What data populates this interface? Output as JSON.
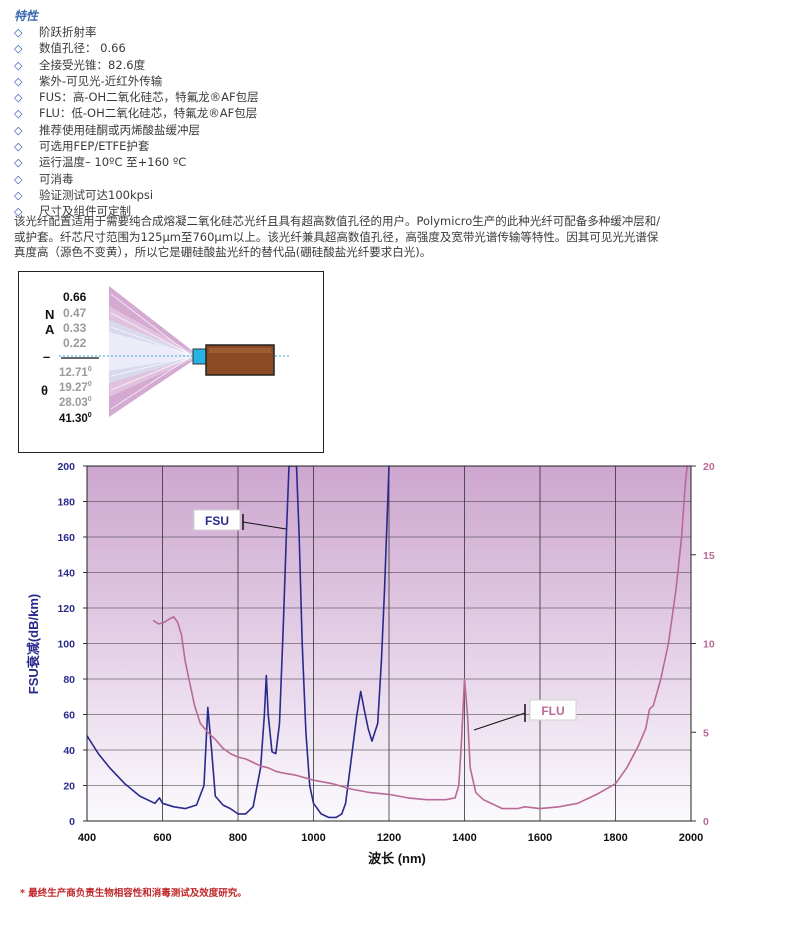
{
  "section_title": "特性",
  "features": [
    "阶跃折射率",
    "数值孔径：  0.66",
    "全接受光锥：82.6度",
    "紫外-可见光-近红外传输",
    "FUS：高-OH二氧化硅芯，特氟龙®AF包层",
    "FLU：低-OH二氧化硅芯，特氟龙®AF包层",
    "推荐使用硅酮或丙烯酸盐缓冲层",
    "可选用FEP/ETFE护套",
    "运行温度– 10ºC 至+160 ºC",
    "可消毒",
    "验证测试可达100kpsi",
    "尺寸及组件可定制"
  ],
  "description_lines": [
    "该光纤配置适用于需要纯合成熔凝二氧化硅芯光纤且具有超高数值孔径的用户。Polymicro生产的此种光纤可配备多种缓冲层和/",
    "或护套。纤芯尺寸范围为125μm至760μm以上。该光纤兼具超高数值孔径，高强度及宽带光谱传输等特性。因其可见光光谱保",
    "真度高（源色不变黄），所以它是硼硅酸盐光纤的替代品(硼硅酸盐光纤要求白光)。"
  ],
  "na_diagram": {
    "na_letters": [
      "N",
      "A",
      "–",
      "θ"
    ],
    "na_values": [
      "0.66",
      "0.47",
      "0.33",
      "0.22"
    ],
    "angle_values": [
      "12.71",
      "19.27",
      "28.03",
      "41.30"
    ],
    "degree_mark": "0"
  },
  "chart_data": {
    "type": "line",
    "xlabel": "波长 (nm)",
    "ylabel_left": "FSU衰减(dB/km)",
    "xlim": [
      400,
      2000
    ],
    "ylim_left": [
      0,
      200
    ],
    "ylim_right": [
      0,
      20
    ],
    "x_ticks": [
      "400",
      "600",
      "800",
      "1000",
      "1200",
      "1400",
      "1600",
      "1800",
      "2000"
    ],
    "y_left_ticks": [
      "0",
      "20",
      "40",
      "60",
      "80",
      "100",
      "120",
      "140",
      "160",
      "180",
      "200"
    ],
    "y_right_ticks": [
      "0",
      "5",
      "10",
      "15",
      "20"
    ],
    "grid": true,
    "series": [
      {
        "name": "FSU",
        "axis": "left",
        "color": "#2a2a8c",
        "points": [
          [
            400,
            48
          ],
          [
            430,
            38
          ],
          [
            460,
            30
          ],
          [
            500,
            21
          ],
          [
            540,
            14
          ],
          [
            580,
            10
          ],
          [
            592,
            13
          ],
          [
            600,
            10
          ],
          [
            630,
            8
          ],
          [
            660,
            7
          ],
          [
            690,
            9
          ],
          [
            710,
            20
          ],
          [
            720,
            64
          ],
          [
            730,
            40
          ],
          [
            740,
            14
          ],
          [
            760,
            9
          ],
          [
            780,
            7
          ],
          [
            800,
            4
          ],
          [
            820,
            4
          ],
          [
            840,
            8
          ],
          [
            860,
            30
          ],
          [
            870,
            60
          ],
          [
            875,
            82
          ],
          [
            880,
            60
          ],
          [
            890,
            39
          ],
          [
            900,
            38
          ],
          [
            910,
            55
          ],
          [
            920,
            110
          ],
          [
            928,
            160
          ],
          [
            935,
            200
          ],
          [
            955,
            200
          ],
          [
            962,
            160
          ],
          [
            970,
            100
          ],
          [
            980,
            50
          ],
          [
            990,
            20
          ],
          [
            1000,
            10
          ],
          [
            1020,
            4
          ],
          [
            1040,
            2
          ],
          [
            1060,
            2
          ],
          [
            1075,
            4
          ],
          [
            1085,
            10
          ],
          [
            1100,
            35
          ],
          [
            1115,
            60
          ],
          [
            1125,
            73
          ],
          [
            1135,
            62
          ],
          [
            1145,
            52
          ],
          [
            1155,
            45
          ],
          [
            1170,
            55
          ],
          [
            1180,
            90
          ],
          [
            1188,
            130
          ],
          [
            1195,
            170
          ],
          [
            1200,
            200
          ]
        ]
      },
      {
        "name": "FLU",
        "axis": "right",
        "color": "#b86a96",
        "points": [
          [
            575,
            11.3
          ],
          [
            590,
            11.1
          ],
          [
            605,
            11.2
          ],
          [
            620,
            11.4
          ],
          [
            630,
            11.5
          ],
          [
            640,
            11.2
          ],
          [
            650,
            10.5
          ],
          [
            660,
            9.0
          ],
          [
            670,
            8.0
          ],
          [
            685,
            6.5
          ],
          [
            700,
            5.5
          ],
          [
            720,
            5.0
          ],
          [
            740,
            4.6
          ],
          [
            760,
            4.1
          ],
          [
            780,
            3.8
          ],
          [
            800,
            3.6
          ],
          [
            820,
            3.5
          ],
          [
            840,
            3.3
          ],
          [
            860,
            3.1
          ],
          [
            880,
            3.0
          ],
          [
            900,
            2.8
          ],
          [
            920,
            2.7
          ],
          [
            950,
            2.6
          ],
          [
            1000,
            2.3
          ],
          [
            1050,
            2.1
          ],
          [
            1100,
            1.8
          ],
          [
            1150,
            1.6
          ],
          [
            1200,
            1.5
          ],
          [
            1250,
            1.3
          ],
          [
            1300,
            1.2
          ],
          [
            1350,
            1.2
          ],
          [
            1375,
            1.3
          ],
          [
            1385,
            2.0
          ],
          [
            1392,
            4.5
          ],
          [
            1400,
            8.0
          ],
          [
            1408,
            6.0
          ],
          [
            1415,
            3.0
          ],
          [
            1430,
            1.6
          ],
          [
            1450,
            1.2
          ],
          [
            1480,
            0.9
          ],
          [
            1500,
            0.7
          ],
          [
            1540,
            0.7
          ],
          [
            1560,
            0.8
          ],
          [
            1600,
            0.7
          ],
          [
            1650,
            0.8
          ],
          [
            1700,
            1.0
          ],
          [
            1750,
            1.5
          ],
          [
            1800,
            2.1
          ],
          [
            1830,
            3.0
          ],
          [
            1860,
            4.2
          ],
          [
            1880,
            5.2
          ],
          [
            1890,
            6.3
          ],
          [
            1900,
            6.5
          ],
          [
            1920,
            8.0
          ],
          [
            1940,
            10.0
          ],
          [
            1960,
            13.0
          ],
          [
            1975,
            16.0
          ],
          [
            1985,
            19.0
          ],
          [
            1990,
            20.0
          ]
        ]
      }
    ],
    "annotations": [
      "FSU",
      "FLU"
    ]
  },
  "footnote": "* 最终生产商负责生物相容性和消毒测试及效度研究。"
}
